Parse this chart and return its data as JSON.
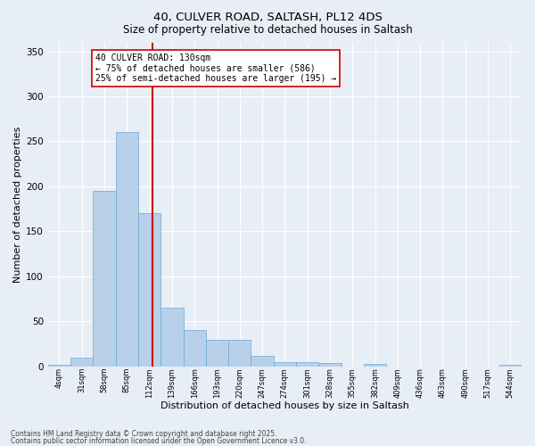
{
  "title1": "40, CULVER ROAD, SALTASH, PL12 4DS",
  "title2": "Size of property relative to detached houses in Saltash",
  "xlabel": "Distribution of detached houses by size in Saltash",
  "ylabel": "Number of detached properties",
  "bin_labels": [
    "4sqm",
    "31sqm",
    "58sqm",
    "85sqm",
    "112sqm",
    "139sqm",
    "166sqm",
    "193sqm",
    "220sqm",
    "247sqm",
    "274sqm",
    "301sqm",
    "328sqm",
    "355sqm",
    "382sqm",
    "409sqm",
    "436sqm",
    "463sqm",
    "490sqm",
    "517sqm",
    "544sqm"
  ],
  "bar_heights": [
    2,
    9,
    195,
    260,
    170,
    65,
    40,
    29,
    29,
    11,
    5,
    5,
    4,
    0,
    3,
    0,
    0,
    0,
    0,
    0,
    2
  ],
  "bar_color": "#b8d0ea",
  "bar_edge_color": "#6aaad4",
  "vline_x": 4.64,
  "vline_color": "#cc0000",
  "annotation_text": "40 CULVER ROAD: 130sqm\n← 75% of detached houses are smaller (586)\n25% of semi-detached houses are larger (195) →",
  "annotation_box_color": "#ffffff",
  "annotation_box_edgecolor": "#cc0000",
  "ylim": [
    0,
    360
  ],
  "yticks": [
    0,
    50,
    100,
    150,
    200,
    250,
    300,
    350
  ],
  "footer1": "Contains HM Land Registry data © Crown copyright and database right 2025.",
  "footer2": "Contains public sector information licensed under the Open Government Licence v3.0.",
  "bg_color": "#e8eef6",
  "plot_bg_color": "#e8eef6"
}
